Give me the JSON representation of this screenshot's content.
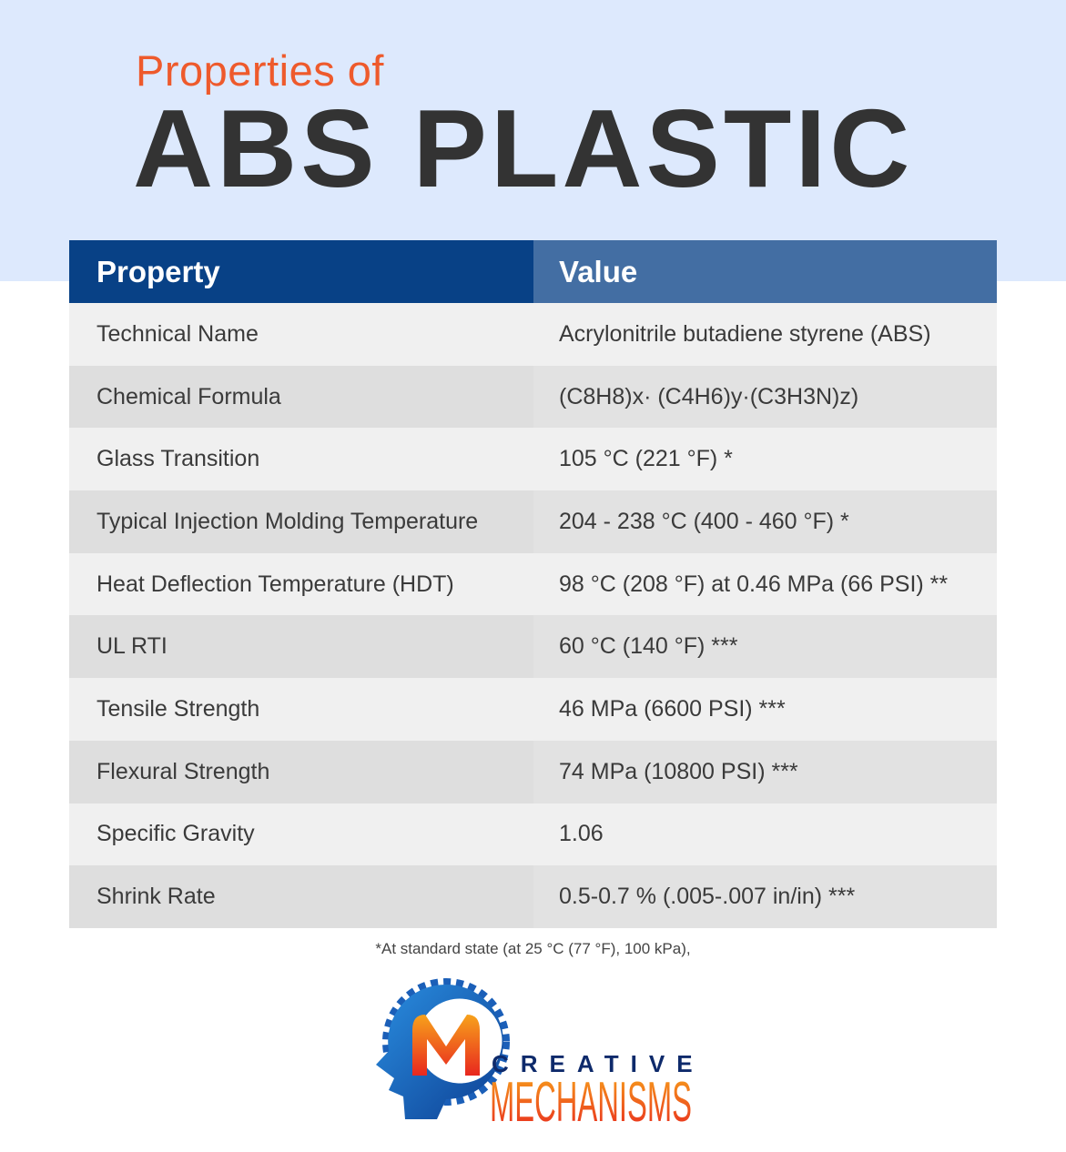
{
  "header": {
    "subtitle": "Properties of",
    "title": "ABS PLASTIC"
  },
  "table": {
    "columns": [
      "Property",
      "Value"
    ],
    "rows": [
      [
        "Technical Name",
        "Acrylonitrile butadiene styrene (ABS)"
      ],
      [
        "Chemical Formula",
        "(C8H8)x· (C4H6)y·(C3H3N)z)"
      ],
      [
        "Glass Transition",
        "105 °C (221 °F) *"
      ],
      [
        "Typical Injection Molding Temperature",
        "204 - 238 °C (400 - 460 °F) *"
      ],
      [
        "Heat Deflection Temperature (HDT)",
        "98 °C (208 °F) at 0.46 MPa (66 PSI) **"
      ],
      [
        "UL RTI",
        "60 °C (140 °F) ***"
      ],
      [
        "Tensile Strength",
        "46 MPa (6600 PSI) ***"
      ],
      [
        "Flexural Strength",
        "74 MPa (10800 PSI) ***"
      ],
      [
        "Specific Gravity",
        "1.06"
      ],
      [
        "Shrink Rate",
        "0.5-0.7 % (.005-.007 in/in) ***"
      ]
    ]
  },
  "footnote": "*At standard state (at 25 °C (77 °F), 100 kPa),",
  "logo": {
    "line1": "CREATIVE",
    "line2": "MECHANISMS"
  },
  "colors": {
    "accent": "#ee5a2c",
    "header_dark": "#084186",
    "header_light": "#436ea3",
    "band": "#dde9fd"
  }
}
